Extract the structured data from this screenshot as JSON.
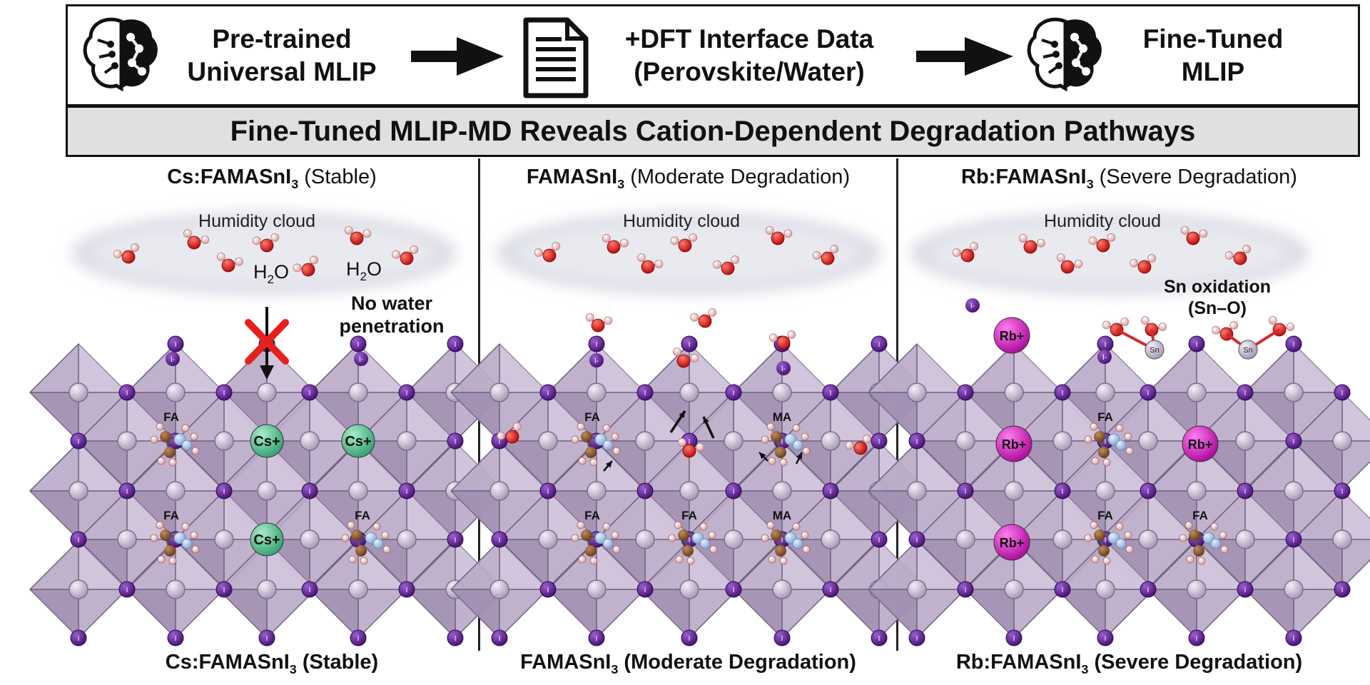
{
  "workflow": {
    "step1": {
      "line1": "Pre-trained",
      "line2": "Universal MLIP"
    },
    "step2": {
      "line1": "+DFT Interface Data",
      "line2": "(Perovskite/Water)"
    },
    "step3": {
      "line1": "Fine-Tuned",
      "line2": "MLIP"
    }
  },
  "banner": "Fine-Tuned MLIP-MD Reveals Cation-Dependent Degradation Pathways",
  "panels": [
    {
      "title_main": "Cs:FAMASnI",
      "title_sub": "3",
      "title_note": " (Stable)",
      "footer_main": "Cs:FAMASnI",
      "footer_sub": "3",
      "footer_note": " (Stable)",
      "cloud_label": "Humidity cloud",
      "h2o_labels": [
        "H",
        "2",
        "O"
      ],
      "annotation": [
        "No water",
        "penetration"
      ],
      "cation_labels": [
        "FA",
        "Cs+",
        "Cs+",
        "FA",
        "Cs+",
        "FA"
      ]
    },
    {
      "title_main": "FAMASnI",
      "title_sub": "3",
      "title_note": " (Moderate Degradation)",
      "footer_main": "FAMASnI",
      "footer_sub": "3",
      "footer_note": " (Moderate Degradation)",
      "cloud_label": "Humidity cloud",
      "cation_labels": [
        "FA",
        "MA",
        "FA",
        "FA",
        "MA"
      ]
    },
    {
      "title_main": "Rb:FAMASnI",
      "title_sub": "3",
      "title_note": " (Severe Degradation)",
      "footer_main": "Rb:FAMASnI",
      "footer_sub": "3",
      "footer_note": " (Severe Degradation)",
      "cloud_label": "Humidity cloud",
      "annotation": [
        "Sn oxidation",
        "(Sn–O)"
      ],
      "cation_labels": [
        "Rb+",
        "FA",
        "Rb+",
        "Rb+",
        "FA",
        "FA",
        "Rb+"
      ]
    }
  ],
  "atom_labels": {
    "iodine": "I",
    "iodide": "I-",
    "tin": "Sn",
    "hydrogen": "H"
  },
  "colors": {
    "iodine": "#5b1f8f",
    "tin": "#cfc3d8",
    "octahedron": "#b6a6c4",
    "cesium": "#5fc79a",
    "rubidium": "#d61fc9",
    "oxygen": "#e02020",
    "nitrogen": "#a8c6e8",
    "carbon": "#8a5a34",
    "cross": "#e8201c"
  }
}
